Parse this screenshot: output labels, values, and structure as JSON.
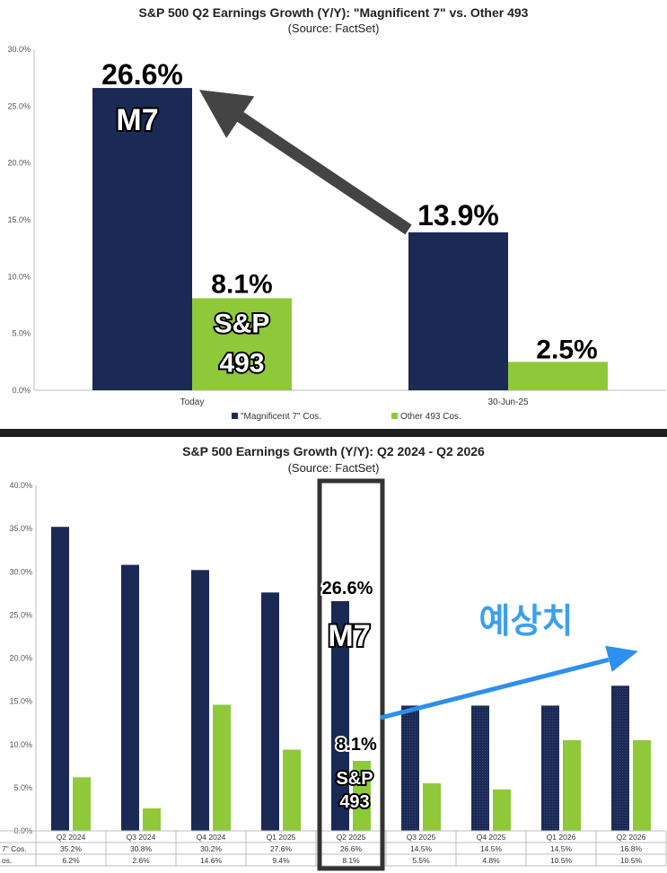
{
  "colors": {
    "m7": "#1b2a55",
    "other": "#8fc93a",
    "arrow_dark": "#444444",
    "arrow_blue": "#2d8ff0",
    "korean_text": "#3aa0f0"
  },
  "top": {
    "title": "S&P 500 Q2 Earnings Growth (Y/Y): \"Magnificent 7\" vs. Other 493",
    "subtitle": "(Source: FactSet)",
    "annotations": {
      "m7_today": "26.6%",
      "m7_label": "M7",
      "sp_today": "8.1%",
      "sp_label_1": "S&P",
      "sp_label_2": "493",
      "m7_later": "13.9%",
      "sp_later": "2.5%"
    },
    "chart_data": {
      "type": "bar",
      "categories": [
        "Today",
        "30-Jun-25"
      ],
      "series": [
        {
          "name": "\"Magnificent 7\" Cos.",
          "values": [
            26.6,
            13.9
          ]
        },
        {
          "name": "Other 493 Cos.",
          "values": [
            8.1,
            2.5
          ]
        }
      ],
      "ylim": [
        0,
        30
      ],
      "yticks": [
        "0.0%",
        "5.0%",
        "10.0%",
        "15.0%",
        "20.0%",
        "25.0%",
        "30.0%"
      ],
      "legend": "bottom",
      "grid": false
    }
  },
  "bottom": {
    "title": "S&P 500 Earnings Growth (Y/Y): Q2 2024 - Q2 2026",
    "subtitle": "(Source: FactSet)",
    "annotations": {
      "m7_value": "26.6%",
      "m7_label": "M7",
      "sp_value": "8.1%",
      "sp_label_1": "S&P",
      "sp_label_2": "493",
      "forecast_label": "예상치"
    },
    "table_row_labels": [
      "7\" Cos.",
      "os."
    ],
    "chart_data": {
      "type": "bar",
      "categories": [
        "Q2 2024",
        "Q3 2024",
        "Q4 2024",
        "Q1 2025",
        "Q2 2025",
        "Q3 2025",
        "Q4 2025",
        "Q1 2026",
        "Q2 2026"
      ],
      "series": [
        {
          "values": [
            35.2,
            30.8,
            30.2,
            27.6,
            26.6,
            14.5,
            14.5,
            14.5,
            16.8
          ]
        },
        {
          "values": [
            6.2,
            2.6,
            14.6,
            9.4,
            8.1,
            5.5,
            4.8,
            10.5,
            10.5
          ]
        }
      ],
      "table_m7": [
        "35.2%",
        "30.8%",
        "30.2%",
        "27.6%",
        "26.6%",
        "14.5%",
        "14.5%",
        "14.5%",
        "16.8%"
      ],
      "table_other": [
        "6.2%",
        "2.6%",
        "14.6%",
        "9.4%",
        "8.1%",
        "5.5%",
        "4.8%",
        "10.5%",
        "10.5%"
      ],
      "ylim": [
        0,
        40
      ],
      "yticks": [
        "0.0%",
        "5.0%",
        "10.0%",
        "15.0%",
        "20.0%",
        "25.0%",
        "30.0%",
        "35.0%",
        "40.0%"
      ],
      "highlighted_category": "Q2 2025",
      "forecast_from": "Q3 2025",
      "grid": false
    }
  }
}
